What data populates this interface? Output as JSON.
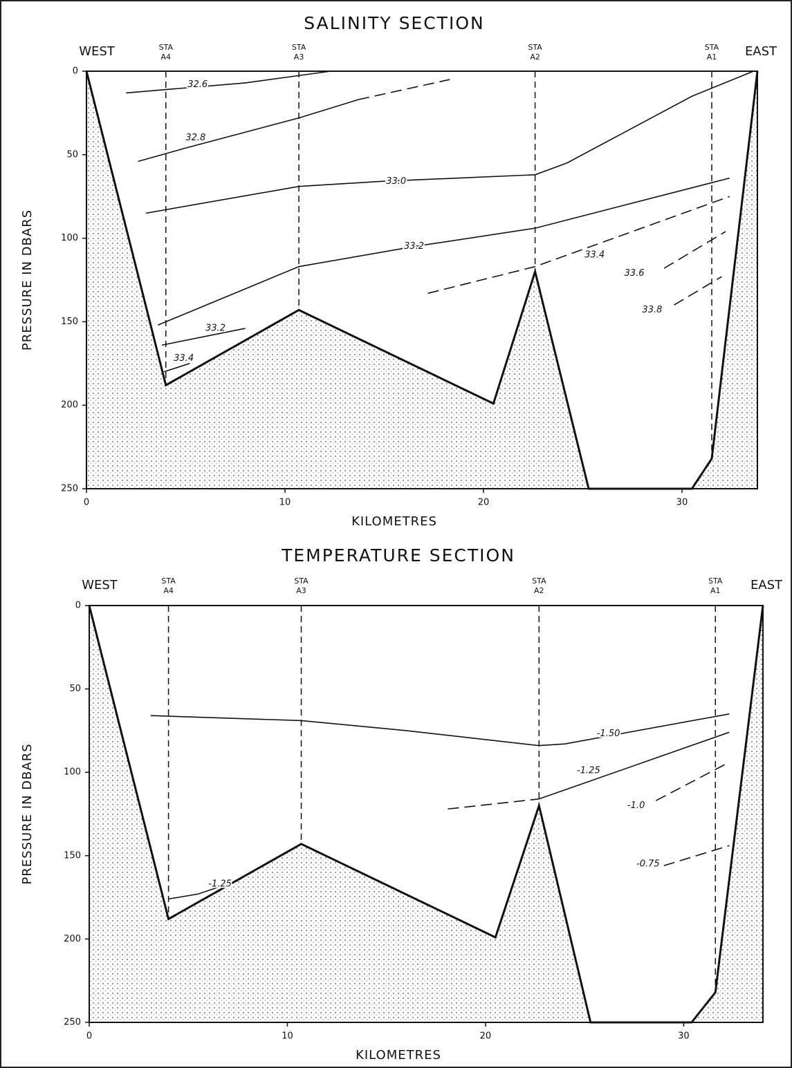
{
  "chart_data": [
    {
      "type": "section",
      "title": "SALINITY SECTION",
      "west_label": "WEST",
      "east_label": "EAST",
      "xlabel": "KILOMETRES",
      "ylabel": "PRESSURE IN DBARS",
      "xlim": [
        0,
        33.8
      ],
      "xticks": [
        0,
        10,
        20,
        30
      ],
      "ylim": [
        0,
        250
      ],
      "yticks": [
        0,
        50,
        100,
        150,
        200,
        250
      ],
      "y_inverted": true,
      "stations": [
        {
          "label": "STA",
          "name": "A4",
          "x": 4
        },
        {
          "label": "STA",
          "name": "A3",
          "x": 10.7
        },
        {
          "label": "STA",
          "name": "A2",
          "x": 22.6
        },
        {
          "label": "STA",
          "name": "A1",
          "x": 31.5
        }
      ],
      "bottom": {
        "x": [
          0,
          4,
          10.7,
          20.5,
          22.6,
          25.3,
          30.5,
          31.5,
          33.8
        ],
        "y": [
          0,
          188,
          143,
          199,
          120,
          250,
          250,
          232,
          0
        ]
      },
      "contours": [
        {
          "label": "32.6",
          "x": [
            2,
            4,
            8,
            12.3
          ],
          "y": [
            13,
            11,
            7,
            0
          ],
          "dashed": false
        },
        {
          "label": "32.8",
          "x": [
            2.6,
            5,
            10.7,
            13.7
          ],
          "y": [
            54,
            46,
            28,
            17
          ],
          "dashed": false
        },
        {
          "x": [
            13.7,
            18.3
          ],
          "y": [
            17,
            5
          ],
          "dashed": true
        },
        {
          "label": "33.0",
          "x": [
            3,
            10.7,
            14.8,
            22.6,
            24.2,
            30.5,
            33.6
          ],
          "y": [
            85,
            69,
            66,
            62,
            55,
            15,
            0
          ],
          "dashed": false
        },
        {
          "label": "33.2",
          "x": [
            3.6,
            10.7,
            16.5,
            22.6,
            32.4
          ],
          "y": [
            152,
            117,
            105,
            94,
            64
          ],
          "dashed": false
        },
        {
          "label": "33.4",
          "x": [
            17.2,
            22.6,
            32.4
          ],
          "y": [
            133,
            117,
            75
          ],
          "dashed": true
        },
        {
          "label": "33.6",
          "x": [
            29.1,
            32.2
          ],
          "y": [
            118,
            96
          ],
          "dashed": true
        },
        {
          "label": "33.8",
          "x": [
            29.6,
            32
          ],
          "y": [
            140,
            123
          ],
          "dashed": true
        },
        {
          "label": "33.2",
          "x": [
            3.8,
            8
          ],
          "y": [
            164,
            154
          ],
          "dashed": false
        },
        {
          "label": "33.4",
          "x": [
            3.9,
            5.2
          ],
          "y": [
            180,
            175
          ],
          "dashed": false
        }
      ]
    },
    {
      "type": "section",
      "title": "TEMPERATURE SECTION",
      "west_label": "WEST",
      "east_label": "EAST",
      "xlabel": "KILOMETRES",
      "ylabel": "PRESSURE IN DBARS",
      "xlim": [
        0,
        34
      ],
      "xticks": [
        0,
        10,
        20,
        30
      ],
      "ylim": [
        0,
        250
      ],
      "yticks": [
        0,
        50,
        100,
        150,
        200,
        250
      ],
      "y_inverted": true,
      "stations": [
        {
          "label": "STA",
          "name": "A4",
          "x": 4
        },
        {
          "label": "STA",
          "name": "A3",
          "x": 10.7
        },
        {
          "label": "STA",
          "name": "A2",
          "x": 22.7
        },
        {
          "label": "STA",
          "name": "A1",
          "x": 31.6
        }
      ],
      "bottom": {
        "x": [
          0,
          4,
          10.7,
          20.5,
          22.7,
          25.3,
          30.4,
          31.6,
          34
        ],
        "y": [
          0,
          188,
          143,
          199,
          120,
          250,
          250,
          232,
          0
        ]
      },
      "contours": [
        {
          "label": "-1.50",
          "x": [
            3.1,
            10.7,
            16,
            22.7,
            24,
            32.3
          ],
          "y": [
            66,
            69,
            75,
            84,
            83,
            65
          ],
          "dashed": false
        },
        {
          "x": [
            18.1,
            22.7
          ],
          "y": [
            122,
            116
          ],
          "dashed": true
        },
        {
          "label": "-1.25",
          "x": [
            22.7,
            32.3
          ],
          "y": [
            116,
            76
          ],
          "dashed": false
        },
        {
          "label": "-1.0",
          "x": [
            28.6,
            32.3
          ],
          "y": [
            117,
            94
          ],
          "dashed": true
        },
        {
          "label": "-0.75",
          "x": [
            29,
            32.3
          ],
          "y": [
            156,
            144
          ],
          "dashed": true
        },
        {
          "label": "-1.25",
          "x": [
            4,
            5.5,
            7.5
          ],
          "y": [
            176,
            173,
            165
          ],
          "dashed": false
        }
      ]
    }
  ]
}
